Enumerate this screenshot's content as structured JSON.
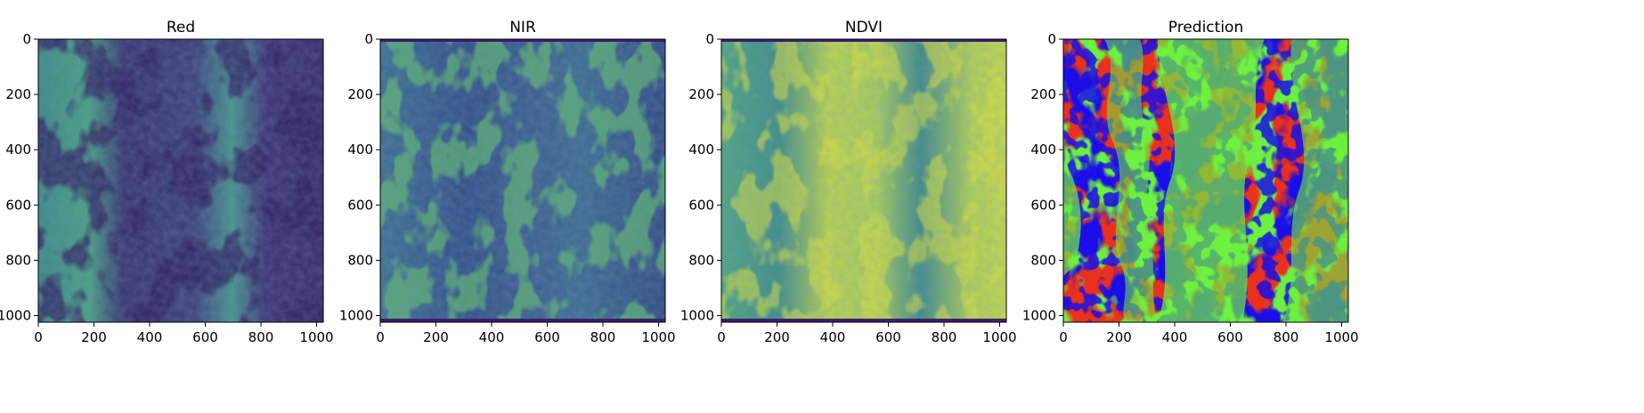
{
  "chart_data": [
    {
      "type": "heatmap",
      "title": "Red",
      "colormap": "viridis",
      "xlim": [
        0,
        1024
      ],
      "ylim": [
        1024,
        0
      ],
      "xticks": [
        0,
        200,
        400,
        600,
        800,
        1000
      ],
      "yticks": [
        0,
        200,
        400,
        600,
        800,
        1000
      ],
      "grid": false,
      "description_of_values": "low values over vegetation rows, higher values over soil paths"
    },
    {
      "type": "heatmap",
      "title": "NIR",
      "colormap": "viridis",
      "xlim": [
        0,
        1024
      ],
      "ylim": [
        1024,
        0
      ],
      "xticks": [
        0,
        200,
        400,
        600,
        800,
        1000
      ],
      "yticks": [
        0,
        200,
        400,
        600,
        800,
        1000
      ],
      "grid": false
    },
    {
      "type": "heatmap",
      "title": "NDVI",
      "colormap": "viridis",
      "xlim": [
        0,
        1024
      ],
      "ylim": [
        1024,
        0
      ],
      "xticks": [
        0,
        200,
        400,
        600,
        800,
        1000
      ],
      "yticks": [
        0,
        200,
        400,
        600,
        800,
        1000
      ],
      "grid": false
    },
    {
      "type": "heatmap",
      "title": "Prediction",
      "xlim": [
        0,
        1024
      ],
      "ylim": [
        1024,
        0
      ],
      "xticks": [
        0,
        200,
        400,
        600,
        800,
        1000
      ],
      "yticks": [
        0,
        200,
        400,
        600,
        800,
        1000
      ],
      "grid": false,
      "class_colors": [
        "#e8321e",
        "#6df03f",
        "#1a10e8"
      ]
    }
  ],
  "colors": {
    "viridis_dark": "#3b2a6e",
    "viridis_mid": "#2f6b8d",
    "viridis_green": "#3ea37a",
    "viridis_yellow": "#d5e03a",
    "pred_soil": "#e8321e",
    "pred_plant": "#6df03f",
    "pred_edge": "#1a10e8"
  }
}
